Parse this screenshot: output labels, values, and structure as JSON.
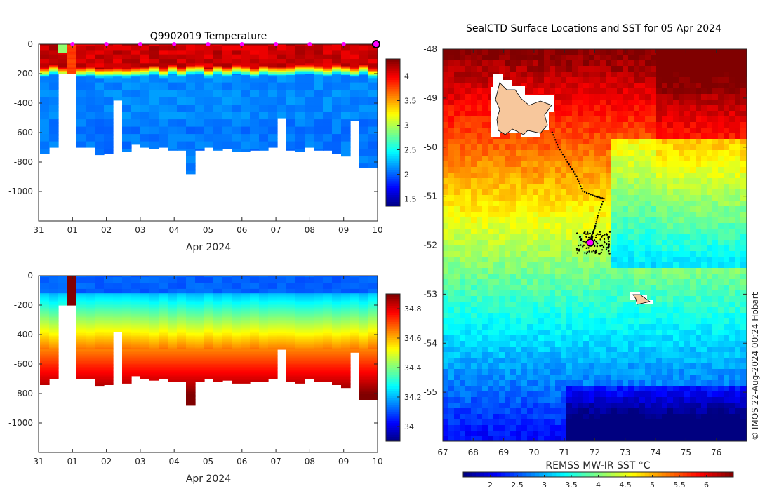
{
  "chart_data": [
    {
      "type": "heatmap",
      "title": "Q9902019  Temperature",
      "xlabel": "Apr 2024",
      "ylabel": "",
      "x_tick_labels": [
        "31",
        "01",
        "02",
        "03",
        "04",
        "05",
        "06",
        "07",
        "08",
        "09",
        "10"
      ],
      "y_tick_labels": [
        "0",
        "-200",
        "-400",
        "-600",
        "-800",
        "-1000"
      ],
      "y_ticks": [
        0,
        -200,
        -400,
        -600,
        -800,
        -1000
      ],
      "ylim": [
        -1200,
        0
      ],
      "colorbar_ticks": [
        1.5,
        2,
        2.5,
        3,
        3.5,
        4
      ],
      "colorbar_range": [
        1.35,
        4.35
      ],
      "profile_depth_limits": [
        -740,
        -700,
        -200,
        -200,
        -700,
        -700,
        -750,
        -740,
        -380,
        -730,
        -680,
        -700,
        -710,
        -700,
        -720,
        -720,
        -880,
        -720,
        -700,
        -720,
        -710,
        -730,
        -730,
        -720,
        -720,
        -700,
        -500,
        -720,
        -730,
        -700,
        -720,
        -720,
        -740,
        -760,
        -520,
        -840,
        -840
      ],
      "surface_sample_markers": [
        "01",
        "02",
        "03",
        "04",
        "05",
        "06",
        "07",
        "08",
        "09"
      ],
      "latest_profile_marker": "10"
    },
    {
      "type": "heatmap",
      "title": "",
      "xlabel": "Apr 2024",
      "x_tick_labels": [
        "31",
        "01",
        "02",
        "03",
        "04",
        "05",
        "06",
        "07",
        "08",
        "09",
        "10"
      ],
      "y_tick_labels": [
        "0",
        "-200",
        "-400",
        "-600",
        "-800",
        "-1000"
      ],
      "y_ticks": [
        0,
        -200,
        -400,
        -600,
        -800,
        -1000
      ],
      "ylim": [
        -1200,
        0
      ],
      "colorbar_ticks": [
        "34",
        "34.2",
        "34.4",
        "34.6",
        "34.8"
      ],
      "colorbar_range": [
        33.9,
        34.9
      ]
    },
    {
      "type": "heatmap",
      "title": "SealCTD Surface Locations and SST for 05 Apr 2024",
      "xlabel": "",
      "x_tick_labels": [
        "67",
        "68",
        "69",
        "70",
        "71",
        "72",
        "73",
        "74",
        "75",
        "76"
      ],
      "x_ticks": [
        67,
        68,
        69,
        70,
        71,
        72,
        73,
        74,
        75,
        76
      ],
      "y_tick_labels": [
        "-48",
        "-49",
        "-50",
        "-51",
        "-52",
        "-53",
        "-54",
        "-55"
      ],
      "y_ticks": [
        -48,
        -49,
        -50,
        -51,
        -52,
        -53,
        -54,
        -55
      ],
      "xlim": [
        67,
        77
      ],
      "ylim": [
        -56,
        -48
      ],
      "colorbar_label": "REMSS MW-IR SST °C",
      "colorbar_ticks": [
        "2",
        "2.5",
        "3",
        "3.5",
        "4",
        "4.5",
        "5",
        "5.5",
        "6"
      ],
      "colorbar_range": [
        1.5,
        6.5
      ],
      "current_position": {
        "lon": 71.85,
        "lat": -51.95
      },
      "track": [
        [
          70.6,
          -49.7
        ],
        [
          70.8,
          -50.0
        ],
        [
          71.1,
          -50.3
        ],
        [
          71.4,
          -50.6
        ],
        [
          71.6,
          -50.9
        ],
        [
          72.0,
          -51.0
        ],
        [
          72.3,
          -51.05
        ],
        [
          72.1,
          -51.4
        ],
        [
          72.0,
          -51.65
        ],
        [
          71.9,
          -51.8
        ],
        [
          71.85,
          -51.95
        ]
      ],
      "annotation": "© IMOS 22-Aug-2024 00:24 Hobart"
    }
  ]
}
